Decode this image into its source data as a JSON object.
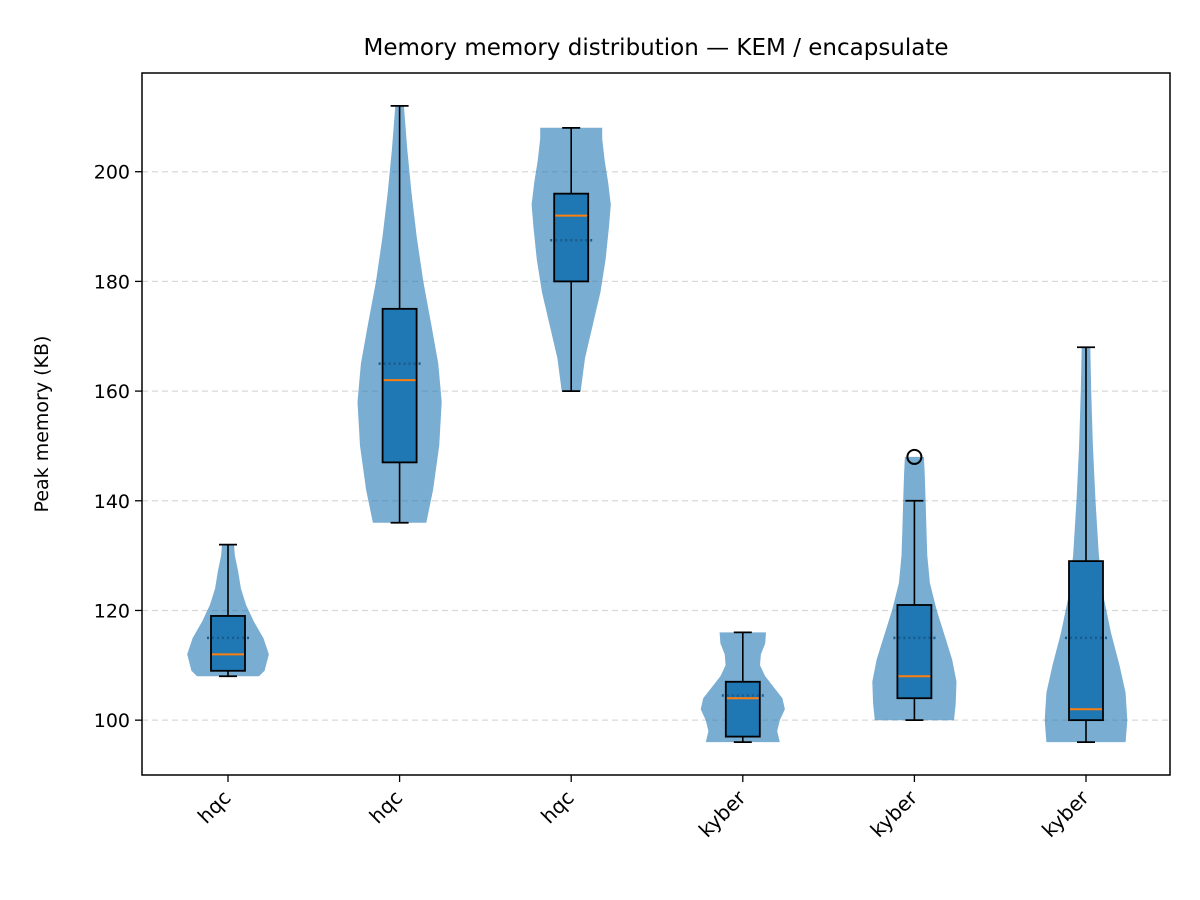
{
  "chart_data": {
    "type": "violin+box",
    "title": "Memory memory distribution — KEM / encapsulate",
    "xlabel": "",
    "ylabel": "Peak memory (KB)",
    "ylim": [
      90,
      218
    ],
    "yticks": [
      100,
      120,
      140,
      160,
      180,
      200
    ],
    "grid": "y-dashed",
    "categories": [
      "hqc",
      "hqc",
      "hqc",
      "kyber",
      "kyber",
      "kyber"
    ],
    "series": [
      {
        "label": "hqc",
        "min": 108,
        "q1": 109,
        "median": 112,
        "mean": 115,
        "q3": 119,
        "max": 132,
        "whisker_low": 108,
        "whisker_high": 132,
        "outliers": [],
        "density": [
          [
            108,
            0.72
          ],
          [
            109,
            0.85
          ],
          [
            112,
            0.95
          ],
          [
            115,
            0.82
          ],
          [
            118,
            0.6
          ],
          [
            121,
            0.42
          ],
          [
            124,
            0.3
          ],
          [
            127,
            0.24
          ],
          [
            130,
            0.16
          ],
          [
            132,
            0.14
          ]
        ]
      },
      {
        "label": "hqc",
        "min": 136,
        "q1": 147,
        "median": 162,
        "mean": 165,
        "q3": 175,
        "max": 212,
        "whisker_low": 136,
        "whisker_high": 212,
        "outliers": [],
        "density": [
          [
            136,
            0.62
          ],
          [
            142,
            0.78
          ],
          [
            150,
            0.92
          ],
          [
            158,
            0.98
          ],
          [
            165,
            0.9
          ],
          [
            172,
            0.74
          ],
          [
            180,
            0.55
          ],
          [
            188,
            0.4
          ],
          [
            196,
            0.28
          ],
          [
            204,
            0.18
          ],
          [
            212,
            0.1
          ]
        ]
      },
      {
        "label": "hqc",
        "min": 160,
        "q1": 180,
        "median": 192,
        "mean": 187.5,
        "q3": 196,
        "max": 208,
        "whisker_low": 160,
        "whisker_high": 208,
        "outliers": [],
        "density": [
          [
            160,
            0.22
          ],
          [
            166,
            0.32
          ],
          [
            172,
            0.5
          ],
          [
            178,
            0.68
          ],
          [
            184,
            0.8
          ],
          [
            190,
            0.88
          ],
          [
            194,
            0.92
          ],
          [
            198,
            0.86
          ],
          [
            202,
            0.78
          ],
          [
            206,
            0.72
          ],
          [
            208,
            0.72
          ]
        ]
      },
      {
        "label": "kyber",
        "min": 96,
        "q1": 97,
        "median": 104,
        "mean": 104.5,
        "q3": 107,
        "max": 116,
        "whisker_low": 96,
        "whisker_high": 116,
        "outliers": [],
        "density": [
          [
            96,
            0.86
          ],
          [
            98,
            0.8
          ],
          [
            100,
            0.86
          ],
          [
            102,
            0.98
          ],
          [
            104,
            0.92
          ],
          [
            106,
            0.72
          ],
          [
            108,
            0.52
          ],
          [
            110,
            0.4
          ],
          [
            112,
            0.42
          ],
          [
            114,
            0.52
          ],
          [
            116,
            0.54
          ]
        ]
      },
      {
        "label": "kyber",
        "min": 100,
        "q1": 104,
        "median": 108,
        "mean": 115,
        "q3": 121,
        "max": 148,
        "whisker_low": 100,
        "whisker_high": 140,
        "outliers": [
          148
        ],
        "density": [
          [
            100,
            0.92
          ],
          [
            103,
            0.96
          ],
          [
            107,
            0.98
          ],
          [
            111,
            0.88
          ],
          [
            115,
            0.72
          ],
          [
            120,
            0.52
          ],
          [
            125,
            0.36
          ],
          [
            130,
            0.3
          ],
          [
            135,
            0.28
          ],
          [
            140,
            0.26
          ],
          [
            145,
            0.24
          ],
          [
            148,
            0.22
          ]
        ]
      },
      {
        "label": "kyber",
        "min": 96,
        "q1": 100,
        "median": 102,
        "mean": 115,
        "q3": 129,
        "max": 168,
        "whisker_low": 96,
        "whisker_high": 168,
        "outliers": [],
        "density": [
          [
            96,
            0.92
          ],
          [
            100,
            0.96
          ],
          [
            105,
            0.92
          ],
          [
            110,
            0.78
          ],
          [
            116,
            0.58
          ],
          [
            122,
            0.42
          ],
          [
            130,
            0.3
          ],
          [
            140,
            0.22
          ],
          [
            150,
            0.16
          ],
          [
            160,
            0.12
          ],
          [
            168,
            0.1
          ]
        ]
      }
    ],
    "colors": {
      "violin": "#1f77b4",
      "box": "#1f77b4",
      "median": "#ff7f0e",
      "grid": "#d9d9d9"
    }
  }
}
